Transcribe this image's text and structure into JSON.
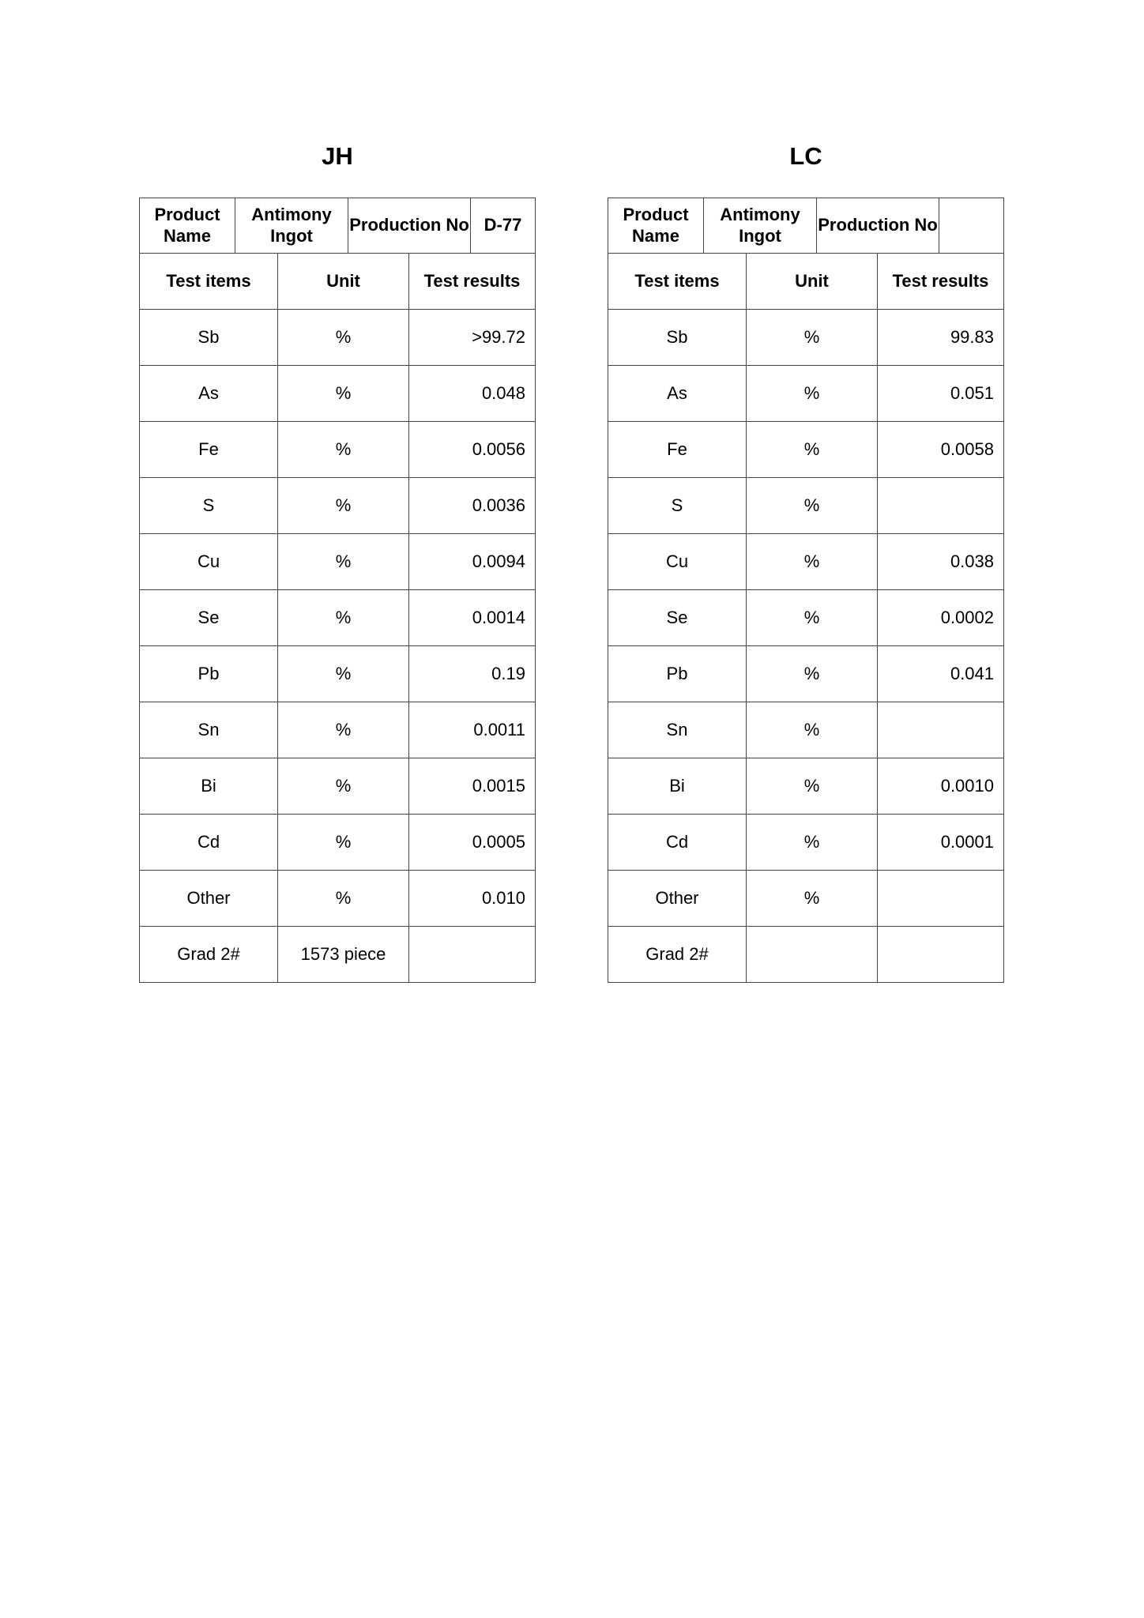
{
  "tables": [
    {
      "title": "JH",
      "header": {
        "product_name_label": "Product Name",
        "product_name_value": "Antimony Ingot",
        "production_no_label": "Production No",
        "production_no_value": "D-77"
      },
      "columns": [
        "Test items",
        "Unit",
        "Test results"
      ],
      "rows": [
        {
          "item": "Sb",
          "unit": "%",
          "result": ">99.72"
        },
        {
          "item": "As",
          "unit": "%",
          "result": "0.048"
        },
        {
          "item": "Fe",
          "unit": "%",
          "result": "0.0056"
        },
        {
          "item": "S",
          "unit": "%",
          "result": "0.0036"
        },
        {
          "item": "Cu",
          "unit": "%",
          "result": "0.0094"
        },
        {
          "item": "Se",
          "unit": "%",
          "result": "0.0014"
        },
        {
          "item": "Pb",
          "unit": "%",
          "result": "0.19"
        },
        {
          "item": "Sn",
          "unit": "%",
          "result": "0.0011"
        },
        {
          "item": "Bi",
          "unit": "%",
          "result": "0.0015"
        },
        {
          "item": "Cd",
          "unit": "%",
          "result": "0.0005"
        },
        {
          "item": "Other",
          "unit": "%",
          "result": "0.010"
        },
        {
          "item": "Grad 2#",
          "unit": "1573 piece",
          "result": ""
        }
      ]
    },
    {
      "title": "LC",
      "header": {
        "product_name_label": "Product Name",
        "product_name_value": "Antimony Ingot",
        "production_no_label": "Production No",
        "production_no_value": ""
      },
      "columns": [
        "Test items",
        "Unit",
        "Test results"
      ],
      "rows": [
        {
          "item": "Sb",
          "unit": "%",
          "result": "99.83"
        },
        {
          "item": "As",
          "unit": "%",
          "result": "0.051"
        },
        {
          "item": "Fe",
          "unit": "%",
          "result": "0.0058"
        },
        {
          "item": "S",
          "unit": "%",
          "result": ""
        },
        {
          "item": "Cu",
          "unit": "%",
          "result": "0.038"
        },
        {
          "item": "Se",
          "unit": "%",
          "result": "0.0002"
        },
        {
          "item": "Pb",
          "unit": "%",
          "result": "0.041"
        },
        {
          "item": "Sn",
          "unit": "%",
          "result": ""
        },
        {
          "item": "Bi",
          "unit": "%",
          "result": "0.0010"
        },
        {
          "item": "Cd",
          "unit": "%",
          "result": "0.0001"
        },
        {
          "item": "Other",
          "unit": "%",
          "result": ""
        },
        {
          "item": "Grad 2#",
          "unit": "",
          "result": ""
        }
      ]
    }
  ]
}
